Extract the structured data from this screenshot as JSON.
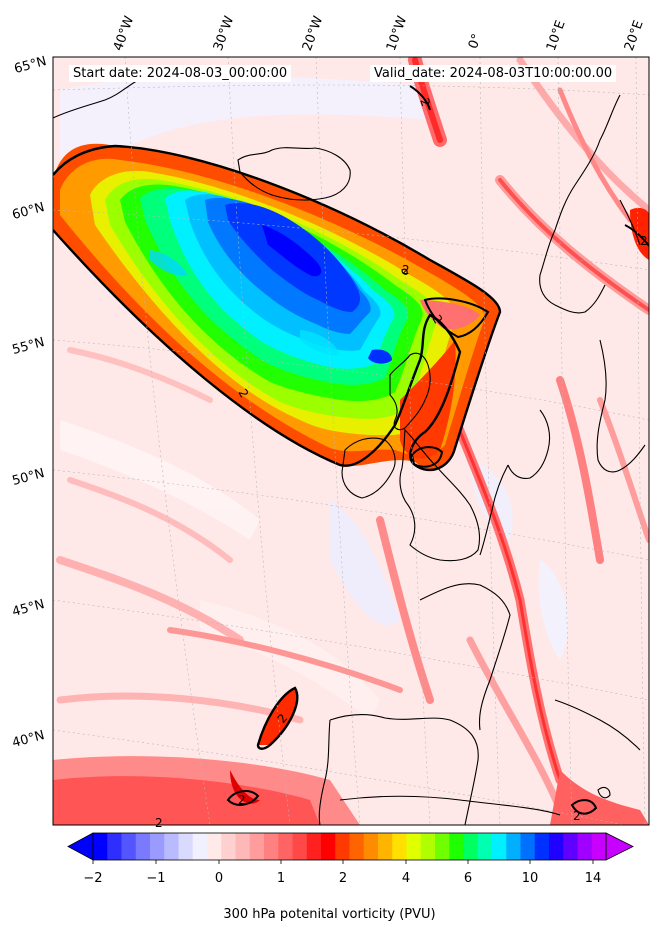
{
  "header": {
    "start_date": "Start date: 2024-08-03_00:00:00",
    "valid_date": "Valid_date: 2024-08-03T10:00:00.00"
  },
  "longitude_labels": [
    "40°W",
    "30°W",
    "20°W",
    "10°W",
    "0°",
    "10°E",
    "20°E"
  ],
  "latitude_labels": [
    "65°N",
    "60°N",
    "55°N",
    "50°N",
    "45°N",
    "40°N"
  ],
  "contour_labels": [
    "2",
    "2",
    "2",
    "2",
    "2",
    "2",
    "2",
    "2",
    "2"
  ],
  "colorbar": {
    "ticks": [
      "−2",
      "−1",
      "0",
      "1",
      "2",
      "4",
      "6",
      "10",
      "14"
    ],
    "title": "300 hPa potenital vorticity (PVU)",
    "colors": [
      "#0000ff",
      "#2e2eff",
      "#5555ff",
      "#7a7aff",
      "#9a9aff",
      "#babaff",
      "#dadaff",
      "#f0f0ff",
      "#ffeaea",
      "#ffd0d0",
      "#ffb8b8",
      "#ff9c9c",
      "#ff8080",
      "#ff6464",
      "#ff4848",
      "#ff2020",
      "#ff0000",
      "#ff3a00",
      "#ff6400",
      "#ff8c00",
      "#ffb400",
      "#ffe000",
      "#e0ff00",
      "#b0ff00",
      "#70ff00",
      "#20ff00",
      "#00ff60",
      "#00ffb0",
      "#00f0ff",
      "#00b0ff",
      "#0070ff",
      "#0030ff",
      "#2000ff",
      "#6000ff",
      "#a000ff",
      "#c800ff"
    ]
  },
  "colors": {
    "background_pv": "#ffe9e9",
    "land_line": "#000000",
    "contour": "#000000"
  }
}
